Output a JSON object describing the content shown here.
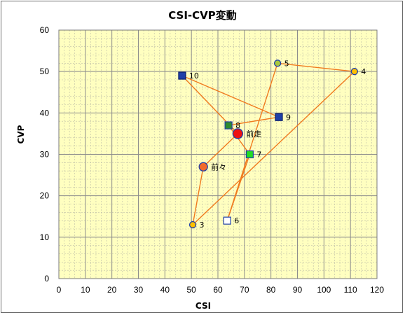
{
  "chart_data": {
    "type": "scatter",
    "title": "CSI-CVP変動",
    "xlabel": "CSI",
    "ylabel": "CVP",
    "xlim": [
      0,
      120
    ],
    "ylim": [
      0,
      60
    ],
    "xticks": [
      0,
      10,
      20,
      30,
      40,
      50,
      60,
      70,
      80,
      90,
      100,
      110,
      120
    ],
    "yticks": [
      0,
      10,
      20,
      30,
      40,
      50,
      60
    ],
    "grid": true,
    "colors": {
      "plot_bg": "#FFFFC0",
      "grid_major": "#8C8C8C",
      "grid_minor": "#BDBDA6",
      "line": "#F07A1E"
    },
    "path": [
      {
        "label": "前々",
        "x": 54.5,
        "y": 27,
        "marker": "circle",
        "size": "large",
        "fill": "#F26B2A",
        "stroke": "#1F3FA8"
      },
      {
        "label": "3",
        "x": 50.5,
        "y": 13,
        "marker": "circle",
        "size": "small",
        "fill": "#FFC000",
        "stroke": "#1F3FA8"
      },
      {
        "label": "4",
        "x": 111.5,
        "y": 50,
        "marker": "circle",
        "size": "small",
        "fill": "#FFC000",
        "stroke": "#1F3FA8"
      },
      {
        "label": "5",
        "x": 82.5,
        "y": 52,
        "marker": "circle",
        "size": "small",
        "fill": "#A8C83C",
        "stroke": "#1F3FA8"
      },
      {
        "label": "6",
        "x": 63.5,
        "y": 14,
        "marker": "square",
        "fill": "#FFFFFF",
        "stroke": "#1F3FA8"
      },
      {
        "label": "7",
        "x": 72,
        "y": 30,
        "marker": "square",
        "fill": "#22DD22",
        "stroke": "#1F3FA8"
      },
      {
        "label": "8",
        "x": 64,
        "y": 37,
        "marker": "square",
        "fill": "#2E8B2E",
        "stroke": "#1F3FA8"
      },
      {
        "label": "9",
        "x": 83,
        "y": 39,
        "marker": "square",
        "fill": "#1F3FA8",
        "stroke": "#0A1E6E"
      },
      {
        "label": "10",
        "x": 46.5,
        "y": 49,
        "marker": "square",
        "fill": "#1F3FA8",
        "stroke": "#0A1E6E"
      },
      {
        "label": "前走",
        "x": 67.5,
        "y": 35,
        "marker": "circle",
        "size": "xlarge",
        "fill": "#EE1111",
        "stroke": "#1F3FA8"
      }
    ],
    "connections": [
      [
        0,
        1
      ],
      [
        1,
        2
      ],
      [
        2,
        3
      ],
      [
        3,
        4
      ],
      [
        4,
        5
      ],
      [
        5,
        6
      ],
      [
        6,
        7
      ],
      [
        7,
        8
      ],
      [
        8,
        9
      ],
      [
        9,
        0
      ]
    ]
  }
}
